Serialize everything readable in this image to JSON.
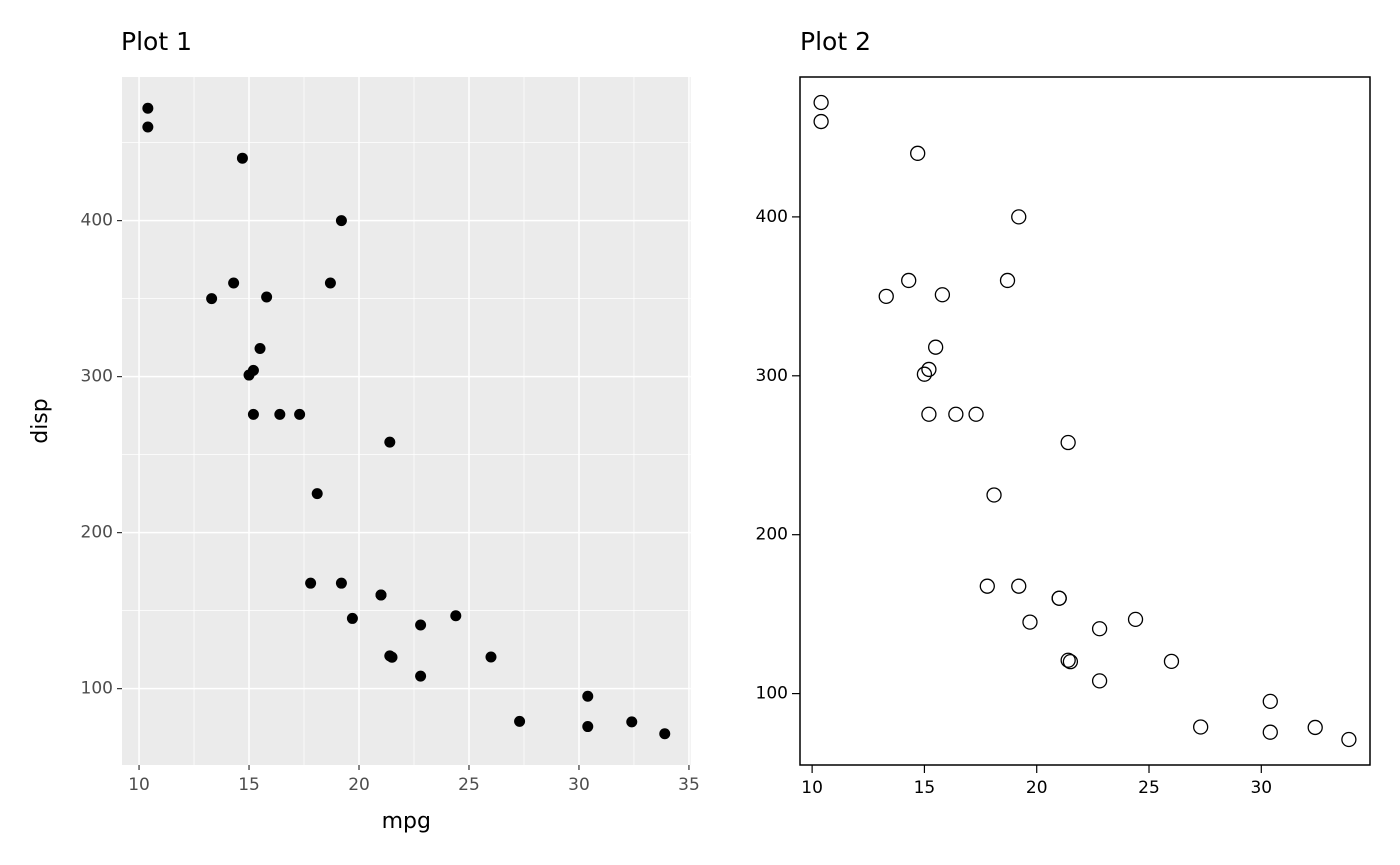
{
  "chart_data": [
    {
      "type": "scatter",
      "title": "Plot 1",
      "x_label": "mpg",
      "y_label": "disp",
      "x": [
        21.0,
        21.0,
        22.8,
        21.4,
        18.7,
        18.1,
        14.3,
        24.4,
        22.8,
        19.2,
        17.8,
        16.4,
        17.3,
        15.2,
        10.4,
        10.4,
        14.7,
        32.4,
        30.4,
        33.9,
        21.5,
        15.5,
        15.2,
        13.3,
        19.2,
        27.3,
        26.0,
        30.4,
        15.8,
        19.7,
        15.0,
        21.4
      ],
      "values": [
        160,
        160,
        108,
        258,
        360,
        225,
        360,
        146.7,
        140.8,
        167.6,
        167.6,
        275.8,
        275.8,
        275.8,
        472,
        460,
        440,
        78.7,
        75.7,
        71.1,
        120.1,
        318,
        304,
        350,
        400,
        79,
        120.3,
        95.1,
        351,
        145,
        301,
        121
      ],
      "xlim": [
        9.225,
        35.075
      ],
      "ylim": [
        51.055,
        492.045
      ],
      "xticks": [
        10,
        15,
        20,
        25,
        30,
        35
      ],
      "yticks": [
        100,
        200,
        300,
        400
      ],
      "xminor": [
        12.5,
        17.5,
        22.5,
        27.5,
        32.5
      ],
      "yminor": [
        150,
        250,
        350,
        450
      ],
      "grid": true,
      "panel_background": "#EBEBEB",
      "marker": "filled",
      "color": "#000000",
      "box": false
    },
    {
      "type": "scatter",
      "title": "Plot 2",
      "x": [
        21.0,
        21.0,
        22.8,
        21.4,
        18.7,
        18.1,
        14.3,
        24.4,
        22.8,
        19.2,
        17.8,
        16.4,
        17.3,
        15.2,
        10.4,
        10.4,
        14.7,
        32.4,
        30.4,
        33.9,
        21.5,
        15.5,
        15.2,
        13.3,
        19.2,
        27.3,
        26.0,
        30.4,
        15.8,
        19.7,
        15.0,
        21.4
      ],
      "values": [
        160,
        160,
        108,
        258,
        360,
        225,
        360,
        146.7,
        140.8,
        167.6,
        167.6,
        275.8,
        275.8,
        275.8,
        472,
        460,
        440,
        78.7,
        75.7,
        71.1,
        120.1,
        318,
        304,
        350,
        400,
        79,
        120.3,
        95.1,
        351,
        145,
        301,
        121
      ],
      "xlim": [
        9.46,
        34.84
      ],
      "ylim": [
        55.064,
        488.036
      ],
      "xticks": [
        10,
        15,
        20,
        25,
        30
      ],
      "yticks": [
        100,
        200,
        300,
        400
      ],
      "grid": false,
      "panel_background": "#FFFFFF",
      "marker": "open",
      "color": "#000000",
      "box": true
    }
  ]
}
